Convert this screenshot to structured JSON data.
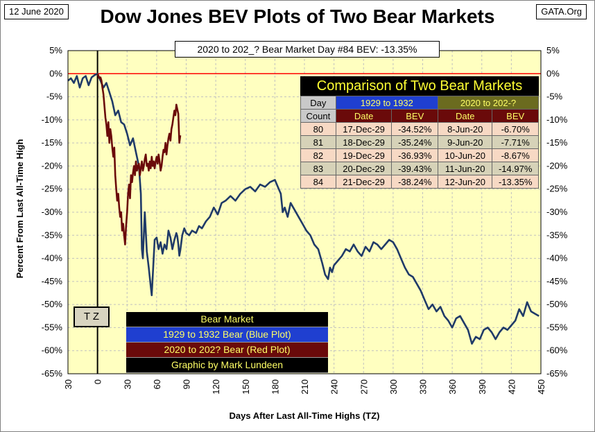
{
  "header": {
    "date": "12 June 2020",
    "title": "Dow Jones BEV Plots of Two Bear Markets",
    "source": "GATA.Org",
    "subtitle": "2020 to 202_? Bear Market Day #84 BEV: -13.35%"
  },
  "tz_label": "T Z",
  "legend": {
    "title": "Bear Market",
    "blue": "1929 to 1932 Bear (Blue Plot)",
    "red": "2020 to 202? Bear (Red Plot)",
    "credit": "Graphic by Mark Lundeen"
  },
  "comparison": {
    "title": "Comparison of Two Bear Markets",
    "day_header_1": "Day",
    "day_header_2": "Count",
    "group_1929": "1929 to 1932",
    "group_2020": "2020 to 202-?",
    "col_date": "Date",
    "col_bev": "BEV",
    "rows": [
      {
        "day": "80",
        "d1929": "17-Dec-29",
        "b1929": "-34.52%",
        "d2020": "8-Jun-20",
        "b2020": "-6.70%"
      },
      {
        "day": "81",
        "d1929": "18-Dec-29",
        "b1929": "-35.24%",
        "d2020": "9-Jun-20",
        "b2020": "-7.71%"
      },
      {
        "day": "82",
        "d1929": "19-Dec-29",
        "b1929": "-36.93%",
        "d2020": "10-Jun-20",
        "b2020": "-8.67%"
      },
      {
        "day": "83",
        "d1929": "20-Dec-29",
        "b1929": "-39.43%",
        "d2020": "11-Jun-20",
        "b2020": "-14.97%"
      },
      {
        "day": "84",
        "d1929": "21-Dec-29",
        "b1929": "-38.24%",
        "d2020": "12-Jun-20",
        "b2020": "-13.35%"
      }
    ]
  },
  "colors": {
    "plot_bg": "#ffffc0",
    "grid": "#c0c0c0",
    "blue_series": "#1f3a68",
    "red_series": "#6a0a0a",
    "zero_line": "#ff0000"
  },
  "chart_data": {
    "type": "line",
    "xlabel": "Days After Last All-Time Highs (TZ)",
    "ylabel": "Percent  From  Last  All-Time  High",
    "xlim": [
      -30,
      450
    ],
    "ylim": [
      -65,
      5
    ],
    "xticks": [
      "30",
      "0",
      "30",
      "60",
      "90",
      "120",
      "150",
      "180",
      "210",
      "240",
      "270",
      "300",
      "330",
      "360",
      "390",
      "420",
      "450"
    ],
    "yticks": [
      "5%",
      "0%",
      "-5%",
      "-10%",
      "-15%",
      "-20%",
      "-25%",
      "-30%",
      "-35%",
      "-40%",
      "-45%",
      "-50%",
      "-55%",
      "-60%",
      "-65%"
    ],
    "zero_line": 0,
    "tz_line_x": 0,
    "series": [
      {
        "name": "1929 to 1932 Bear (Blue Plot)",
        "x": [
          -30,
          -27,
          -24,
          -21,
          -18,
          -15,
          -12,
          -9,
          -6,
          -3,
          0,
          3,
          6,
          9,
          12,
          15,
          18,
          21,
          24,
          27,
          30,
          33,
          36,
          39,
          42,
          44,
          45,
          46,
          48,
          50,
          52,
          54,
          55,
          57,
          58,
          60,
          62,
          64,
          66,
          68,
          70,
          72,
          74,
          76,
          78,
          80,
          81,
          82,
          83,
          84,
          86,
          88,
          90,
          93,
          96,
          100,
          103,
          106,
          110,
          114,
          118,
          122,
          126,
          130,
          135,
          140,
          145,
          150,
          155,
          160,
          165,
          170,
          175,
          180,
          183,
          186,
          188,
          190,
          193,
          196,
          200,
          204,
          208,
          212,
          216,
          220,
          224,
          228,
          231,
          234,
          236,
          238,
          240,
          244,
          248,
          252,
          256,
          260,
          264,
          268,
          272,
          276,
          280,
          284,
          288,
          292,
          296,
          300,
          304,
          308,
          312,
          316,
          320,
          324,
          328,
          332,
          336,
          340,
          344,
          348,
          352,
          356,
          360,
          364,
          368,
          372,
          376,
          380,
          384,
          388,
          392,
          396,
          400,
          404,
          408,
          412,
          416,
          420,
          424,
          428,
          432,
          436,
          440,
          444,
          448
        ],
        "y": [
          -1.5,
          -1.0,
          -2.0,
          -0.5,
          -3.0,
          -1.0,
          -0.5,
          -2.5,
          -0.8,
          -0.3,
          0.0,
          -1.5,
          -3.0,
          -2.0,
          -4.0,
          -6.0,
          -9.0,
          -8.0,
          -10.5,
          -11.0,
          -13.0,
          -15.5,
          -14.0,
          -17.0,
          -20.0,
          -26.0,
          -38.0,
          -40.0,
          -30.0,
          -38.5,
          -42.0,
          -46.0,
          -48.0,
          -40.0,
          -36.0,
          -35.5,
          -38.0,
          -36.5,
          -39.0,
          -37.0,
          -38.0,
          -34.0,
          -35.5,
          -38.0,
          -36.0,
          -34.52,
          -35.24,
          -36.93,
          -39.43,
          -38.24,
          -35.0,
          -33.5,
          -34.5,
          -35.0,
          -34.0,
          -34.5,
          -33.0,
          -33.5,
          -32.0,
          -31.0,
          -29.0,
          -30.5,
          -28.0,
          -27.5,
          -26.5,
          -27.5,
          -26.0,
          -25.0,
          -24.5,
          -25.5,
          -24.0,
          -24.5,
          -23.5,
          -23.0,
          -24.5,
          -26.0,
          -30.0,
          -29.0,
          -31.0,
          -28.0,
          -29.5,
          -31.0,
          -32.5,
          -34.0,
          -35.0,
          -37.0,
          -38.0,
          -41.0,
          -43.5,
          -44.5,
          -42.0,
          -43.0,
          -41.5,
          -40.5,
          -39.5,
          -38.0,
          -38.5,
          -37.0,
          -38.5,
          -39.5,
          -37.5,
          -38.5,
          -36.5,
          -37.0,
          -38.0,
          -37.0,
          -36.0,
          -36.5,
          -38.0,
          -40.0,
          -42.0,
          -43.5,
          -44.0,
          -45.5,
          -47.0,
          -49.0,
          -51.0,
          -50.0,
          -51.5,
          -50.5,
          -52.5,
          -53.5,
          -55.0,
          -53.0,
          -52.5,
          -54.0,
          -55.5,
          -58.5,
          -57.0,
          -57.5,
          -55.5,
          -55.0,
          -56.0,
          -57.5,
          -56.0,
          -55.0,
          -55.5,
          -54.5,
          -53.5,
          -51.0,
          -52.5,
          -49.5,
          -51.5,
          -52.0,
          -52.5
        ]
      },
      {
        "name": "2020 to 202? Bear (Red Plot)",
        "x": [
          0,
          1,
          2,
          3,
          4,
          5,
          6,
          7,
          8,
          9,
          10,
          11,
          12,
          13,
          14,
          15,
          16,
          17,
          18,
          19,
          20,
          21,
          22,
          23,
          24,
          25,
          26,
          27,
          28,
          29,
          30,
          31,
          32,
          33,
          34,
          35,
          36,
          37,
          38,
          39,
          40,
          41,
          42,
          43,
          44,
          45,
          46,
          47,
          48,
          49,
          50,
          51,
          52,
          53,
          54,
          55,
          56,
          57,
          58,
          59,
          60,
          61,
          62,
          63,
          64,
          65,
          66,
          67,
          68,
          69,
          70,
          71,
          72,
          73,
          74,
          75,
          76,
          77,
          78,
          79,
          80,
          81,
          82,
          83,
          84
        ],
        "y": [
          0.0,
          -0.5,
          -1.0,
          -0.8,
          -1.5,
          -3.0,
          -4.5,
          -7.0,
          -9.5,
          -11.0,
          -13.5,
          -10.5,
          -15.0,
          -12.0,
          -13.5,
          -16.0,
          -18.0,
          -16.0,
          -22.0,
          -25.0,
          -27.5,
          -26.0,
          -29.0,
          -31.0,
          -30.0,
          -34.0,
          -32.5,
          -35.0,
          -37.0,
          -33.0,
          -30.0,
          -26.0,
          -24.0,
          -27.0,
          -22.0,
          -23.5,
          -21.5,
          -20.0,
          -22.0,
          -19.0,
          -21.0,
          -20.0,
          -19.5,
          -22.0,
          -20.5,
          -19.0,
          -21.0,
          -20.0,
          -18.5,
          -17.5,
          -20.0,
          -19.5,
          -21.0,
          -19.0,
          -20.5,
          -18.0,
          -20.0,
          -19.0,
          -20.5,
          -19.0,
          -18.0,
          -19.5,
          -17.5,
          -19.0,
          -21.0,
          -20.0,
          -18.0,
          -16.5,
          -17.0,
          -15.0,
          -17.5,
          -15.5,
          -14.0,
          -13.0,
          -14.5,
          -12.0,
          -11.0,
          -9.5,
          -8.0,
          -9.0,
          -6.7,
          -7.71,
          -8.67,
          -14.97,
          -13.35
        ]
      }
    ]
  }
}
